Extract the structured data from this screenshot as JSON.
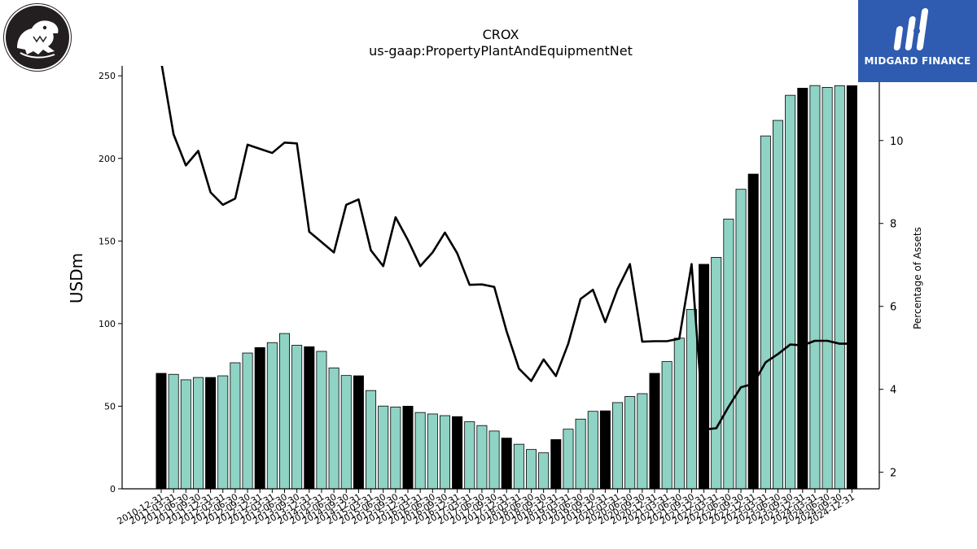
{
  "header": {
    "brand_name": "MIDGARD FINANCE",
    "logo_left": "crocodile-logo-icon",
    "logo_right": "midgard-logo-icon"
  },
  "colors": {
    "bar_default": "#8fd3c5",
    "bar_year_end": "#000000",
    "line": "#000000",
    "brand_bg": "#2f5bb0"
  },
  "chart_data": {
    "type": "bar",
    "title": "CROX",
    "subtitle": "us-gaap:PropertyPlantAndEquipmentNet",
    "ylabel": "USDm",
    "ylabel_right": "Percentage of Assets",
    "ylim": [
      0,
      256
    ],
    "ylim_right": [
      1.6,
      11.8
    ],
    "yticks": [
      0,
      50,
      100,
      150,
      200,
      250
    ],
    "yticks_right": [
      2,
      4,
      6,
      8,
      10
    ],
    "grid": false,
    "categories": [
      "2010-12-31",
      "2011-03-31",
      "2011-06-30",
      "2011-09-30",
      "2011-12-31",
      "2012-03-31",
      "2012-06-30",
      "2012-09-30",
      "2012-12-31",
      "2013-03-31",
      "2013-06-30",
      "2013-09-30",
      "2013-12-31",
      "2014-03-31",
      "2014-06-30",
      "2014-09-30",
      "2014-12-31",
      "2015-03-31",
      "2015-06-30",
      "2015-09-30",
      "2015-12-31",
      "2016-03-31",
      "2016-06-30",
      "2016-09-30",
      "2016-12-31",
      "2017-03-31",
      "2017-06-30",
      "2017-09-30",
      "2017-12-31",
      "2018-03-31",
      "2018-06-30",
      "2018-09-30",
      "2018-12-31",
      "2019-03-31",
      "2019-06-30",
      "2019-09-30",
      "2019-12-31",
      "2020-03-31",
      "2020-06-30",
      "2020-09-30",
      "2020-12-31",
      "2021-03-31",
      "2021-06-30",
      "2021-09-30",
      "2021-12-31",
      "2022-03-31",
      "2022-06-30",
      "2022-09-30",
      "2022-12-31",
      "2023-03-31",
      "2023-06-30",
      "2023-09-30",
      "2023-12-31",
      "2024-03-31",
      "2024-06-30",
      "2024-09-30",
      "2024-12-31"
    ],
    "series": [
      {
        "type": "bar",
        "values": [
          69.9,
          69.3,
          66.0,
          67.4,
          67.4,
          68.4,
          76.3,
          82.2,
          85.5,
          88.5,
          94.0,
          86.9,
          86.0,
          83.2,
          73.2,
          68.6,
          68.4,
          59.5,
          50.1,
          49.5,
          50.0,
          46.2,
          45.3,
          44.3,
          43.7,
          40.6,
          38.3,
          35.0,
          30.7,
          27.0,
          23.8,
          21.8,
          29.8,
          36.1,
          42.2,
          46.9,
          47.2,
          52.2,
          55.9,
          57.6,
          69.9,
          77.0,
          91.2,
          108.6,
          135.9,
          140.1,
          163.3,
          181.3,
          190.5,
          213.6,
          223.0,
          238.2,
          242.5,
          244.1,
          243.0,
          244.0,
          244.0
        ],
        "year_end": [
          true,
          false,
          false,
          false,
          true,
          false,
          false,
          false,
          true,
          false,
          false,
          false,
          true,
          false,
          false,
          false,
          true,
          false,
          false,
          false,
          true,
          false,
          false,
          false,
          true,
          false,
          false,
          false,
          true,
          false,
          false,
          false,
          true,
          false,
          false,
          false,
          true,
          false,
          false,
          false,
          true,
          false,
          false,
          false,
          true,
          false,
          false,
          false,
          true,
          false,
          false,
          false,
          true,
          false,
          false,
          false,
          true
        ]
      },
      {
        "type": "line",
        "axis": "right",
        "values": [
          11.9,
          10.15,
          9.4,
          9.75,
          8.75,
          8.45,
          8.6,
          9.9,
          9.8,
          9.7,
          9.95,
          9.93,
          7.8,
          7.55,
          7.3,
          8.45,
          8.58,
          7.35,
          6.97,
          8.15,
          7.6,
          6.97,
          7.3,
          7.78,
          7.28,
          6.52,
          6.53,
          6.47,
          5.4,
          4.5,
          4.2,
          4.72,
          4.32,
          5.1,
          6.18,
          6.4,
          5.62,
          6.42,
          7.02,
          5.15,
          5.16,
          5.16,
          5.22,
          7.02,
          3.03,
          3.06,
          3.58,
          4.05,
          4.13,
          4.65,
          4.85,
          5.08,
          5.06,
          5.17,
          5.17,
          5.1,
          5.1
        ]
      }
    ]
  }
}
